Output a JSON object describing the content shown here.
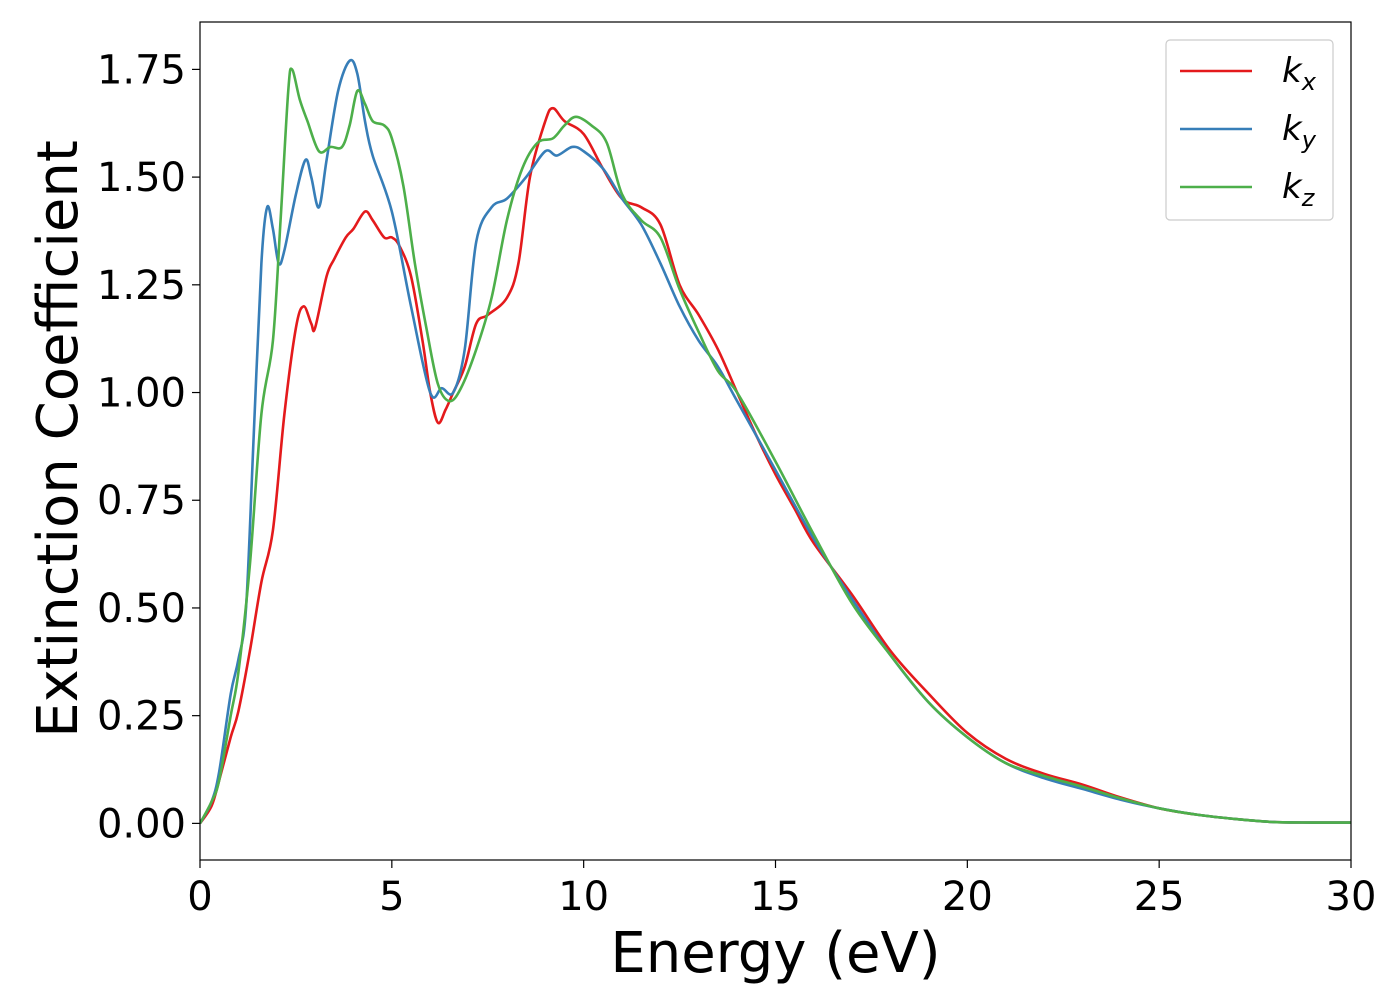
{
  "chart_data": {
    "type": "line",
    "title": "",
    "xlabel": "Energy (eV)",
    "ylabel": "Extinction Coefficient",
    "xlim": [
      0,
      30
    ],
    "ylim": [
      -0.085,
      1.86
    ],
    "xticks": [
      0,
      5,
      10,
      15,
      20,
      25,
      30
    ],
    "xtick_labels": [
      "0",
      "5",
      "10",
      "15",
      "20",
      "25",
      "30"
    ],
    "yticks": [
      0,
      0.25,
      0.5,
      0.75,
      1.0,
      1.25,
      1.5,
      1.75
    ],
    "ytick_labels": [
      "0.00",
      "0.25",
      "0.50",
      "0.75",
      "1.00",
      "1.25",
      "1.50",
      "1.75"
    ],
    "grid": false,
    "legend_position": "top-right",
    "series": [
      {
        "name": "kx",
        "base": "k",
        "subscript": "x",
        "color": "#e41a1c",
        "points": [
          [
            0,
            0
          ],
          [
            0.3,
            0.04
          ],
          [
            0.5,
            0.1
          ],
          [
            0.8,
            0.2
          ],
          [
            1.0,
            0.26
          ],
          [
            1.3,
            0.4
          ],
          [
            1.6,
            0.56
          ],
          [
            1.9,
            0.68
          ],
          [
            2.2,
            0.95
          ],
          [
            2.5,
            1.15
          ],
          [
            2.7,
            1.2
          ],
          [
            2.9,
            1.16
          ],
          [
            3.0,
            1.15
          ],
          [
            3.3,
            1.27
          ],
          [
            3.5,
            1.31
          ],
          [
            3.8,
            1.36
          ],
          [
            4.0,
            1.38
          ],
          [
            4.3,
            1.42
          ],
          [
            4.5,
            1.4
          ],
          [
            4.8,
            1.36
          ],
          [
            5.0,
            1.36
          ],
          [
            5.2,
            1.34
          ],
          [
            5.5,
            1.27
          ],
          [
            5.8,
            1.12
          ],
          [
            6.0,
            1.0
          ],
          [
            6.2,
            0.93
          ],
          [
            6.4,
            0.96
          ],
          [
            6.6,
            1.0
          ],
          [
            6.9,
            1.06
          ],
          [
            7.2,
            1.16
          ],
          [
            7.5,
            1.18
          ],
          [
            8.0,
            1.22
          ],
          [
            8.3,
            1.3
          ],
          [
            8.6,
            1.5
          ],
          [
            9.0,
            1.63
          ],
          [
            9.2,
            1.66
          ],
          [
            9.5,
            1.63
          ],
          [
            10.0,
            1.6
          ],
          [
            10.5,
            1.52
          ],
          [
            11.0,
            1.45
          ],
          [
            11.5,
            1.43
          ],
          [
            12.0,
            1.39
          ],
          [
            12.5,
            1.25
          ],
          [
            13.0,
            1.18
          ],
          [
            13.5,
            1.1
          ],
          [
            14.0,
            1.0
          ],
          [
            14.5,
            0.9
          ],
          [
            15.0,
            0.81
          ],
          [
            15.5,
            0.73
          ],
          [
            16.0,
            0.65
          ],
          [
            17.0,
            0.53
          ],
          [
            18.0,
            0.4
          ],
          [
            19.0,
            0.3
          ],
          [
            20.0,
            0.21
          ],
          [
            21.0,
            0.15
          ],
          [
            22.0,
            0.115
          ],
          [
            23.0,
            0.09
          ],
          [
            24.0,
            0.06
          ],
          [
            25.0,
            0.035
          ],
          [
            26.0,
            0.02
          ],
          [
            27.0,
            0.01
          ],
          [
            28.0,
            0.003
          ],
          [
            29.0,
            0.002
          ],
          [
            30.0,
            0.002
          ]
        ]
      },
      {
        "name": "ky",
        "base": "k",
        "subscript": "y",
        "color": "#377eb8",
        "points": [
          [
            0,
            0
          ],
          [
            0.3,
            0.05
          ],
          [
            0.5,
            0.12
          ],
          [
            0.8,
            0.3
          ],
          [
            1.0,
            0.38
          ],
          [
            1.2,
            0.5
          ],
          [
            1.4,
            0.9
          ],
          [
            1.6,
            1.3
          ],
          [
            1.75,
            1.43
          ],
          [
            1.9,
            1.38
          ],
          [
            2.05,
            1.3
          ],
          [
            2.2,
            1.33
          ],
          [
            2.5,
            1.46
          ],
          [
            2.75,
            1.54
          ],
          [
            2.9,
            1.5
          ],
          [
            3.1,
            1.43
          ],
          [
            3.3,
            1.54
          ],
          [
            3.6,
            1.7
          ],
          [
            3.9,
            1.77
          ],
          [
            4.1,
            1.74
          ],
          [
            4.3,
            1.63
          ],
          [
            4.5,
            1.55
          ],
          [
            5.0,
            1.42
          ],
          [
            5.5,
            1.2
          ],
          [
            6.0,
            1.0
          ],
          [
            6.3,
            1.01
          ],
          [
            6.6,
            1.0
          ],
          [
            6.9,
            1.1
          ],
          [
            7.2,
            1.35
          ],
          [
            7.6,
            1.43
          ],
          [
            8.0,
            1.45
          ],
          [
            8.5,
            1.5
          ],
          [
            9.0,
            1.56
          ],
          [
            9.3,
            1.55
          ],
          [
            9.7,
            1.57
          ],
          [
            10.0,
            1.56
          ],
          [
            10.5,
            1.52
          ],
          [
            11.0,
            1.45
          ],
          [
            11.5,
            1.39
          ],
          [
            12.0,
            1.3
          ],
          [
            12.5,
            1.2
          ],
          [
            13.0,
            1.12
          ],
          [
            13.5,
            1.06
          ],
          [
            14.0,
            0.98
          ],
          [
            15.0,
            0.82
          ],
          [
            16.0,
            0.66
          ],
          [
            17.0,
            0.52
          ],
          [
            18.0,
            0.39
          ],
          [
            19.0,
            0.28
          ],
          [
            20.0,
            0.2
          ],
          [
            21.0,
            0.14
          ],
          [
            22.0,
            0.105
          ],
          [
            23.0,
            0.08
          ],
          [
            24.0,
            0.055
          ],
          [
            25.0,
            0.035
          ],
          [
            26.0,
            0.02
          ],
          [
            27.0,
            0.01
          ],
          [
            28.0,
            0.003
          ],
          [
            29.0,
            0.002
          ],
          [
            30.0,
            0.002
          ]
        ]
      },
      {
        "name": "kz",
        "base": "k",
        "subscript": "z",
        "color": "#4daf4a",
        "points": [
          [
            0,
            0
          ],
          [
            0.3,
            0.05
          ],
          [
            0.5,
            0.1
          ],
          [
            0.8,
            0.25
          ],
          [
            1.0,
            0.35
          ],
          [
            1.3,
            0.6
          ],
          [
            1.6,
            0.95
          ],
          [
            1.9,
            1.12
          ],
          [
            2.1,
            1.4
          ],
          [
            2.3,
            1.7
          ],
          [
            2.4,
            1.75
          ],
          [
            2.6,
            1.68
          ],
          [
            2.8,
            1.63
          ],
          [
            3.1,
            1.56
          ],
          [
            3.4,
            1.57
          ],
          [
            3.7,
            1.57
          ],
          [
            3.9,
            1.62
          ],
          [
            4.1,
            1.7
          ],
          [
            4.3,
            1.67
          ],
          [
            4.5,
            1.63
          ],
          [
            4.8,
            1.62
          ],
          [
            5.0,
            1.59
          ],
          [
            5.3,
            1.48
          ],
          [
            5.6,
            1.3
          ],
          [
            5.9,
            1.15
          ],
          [
            6.2,
            1.02
          ],
          [
            6.5,
            0.98
          ],
          [
            6.8,
            1.01
          ],
          [
            7.2,
            1.1
          ],
          [
            7.6,
            1.22
          ],
          [
            8.0,
            1.4
          ],
          [
            8.4,
            1.52
          ],
          [
            8.8,
            1.58
          ],
          [
            9.2,
            1.59
          ],
          [
            9.5,
            1.62
          ],
          [
            9.8,
            1.64
          ],
          [
            10.2,
            1.62
          ],
          [
            10.6,
            1.58
          ],
          [
            11.0,
            1.46
          ],
          [
            11.5,
            1.4
          ],
          [
            12.0,
            1.36
          ],
          [
            12.5,
            1.24
          ],
          [
            13.0,
            1.14
          ],
          [
            13.5,
            1.05
          ],
          [
            14.0,
            1.0
          ],
          [
            15.0,
            0.84
          ],
          [
            16.0,
            0.67
          ],
          [
            17.0,
            0.51
          ],
          [
            18.0,
            0.39
          ],
          [
            19.0,
            0.28
          ],
          [
            20.0,
            0.2
          ],
          [
            21.0,
            0.14
          ],
          [
            22.0,
            0.11
          ],
          [
            23.0,
            0.085
          ],
          [
            24.0,
            0.058
          ],
          [
            25.0,
            0.035
          ],
          [
            26.0,
            0.02
          ],
          [
            27.0,
            0.01
          ],
          [
            28.0,
            0.003
          ],
          [
            29.0,
            0.002
          ],
          [
            30.0,
            0.002
          ]
        ]
      }
    ]
  }
}
